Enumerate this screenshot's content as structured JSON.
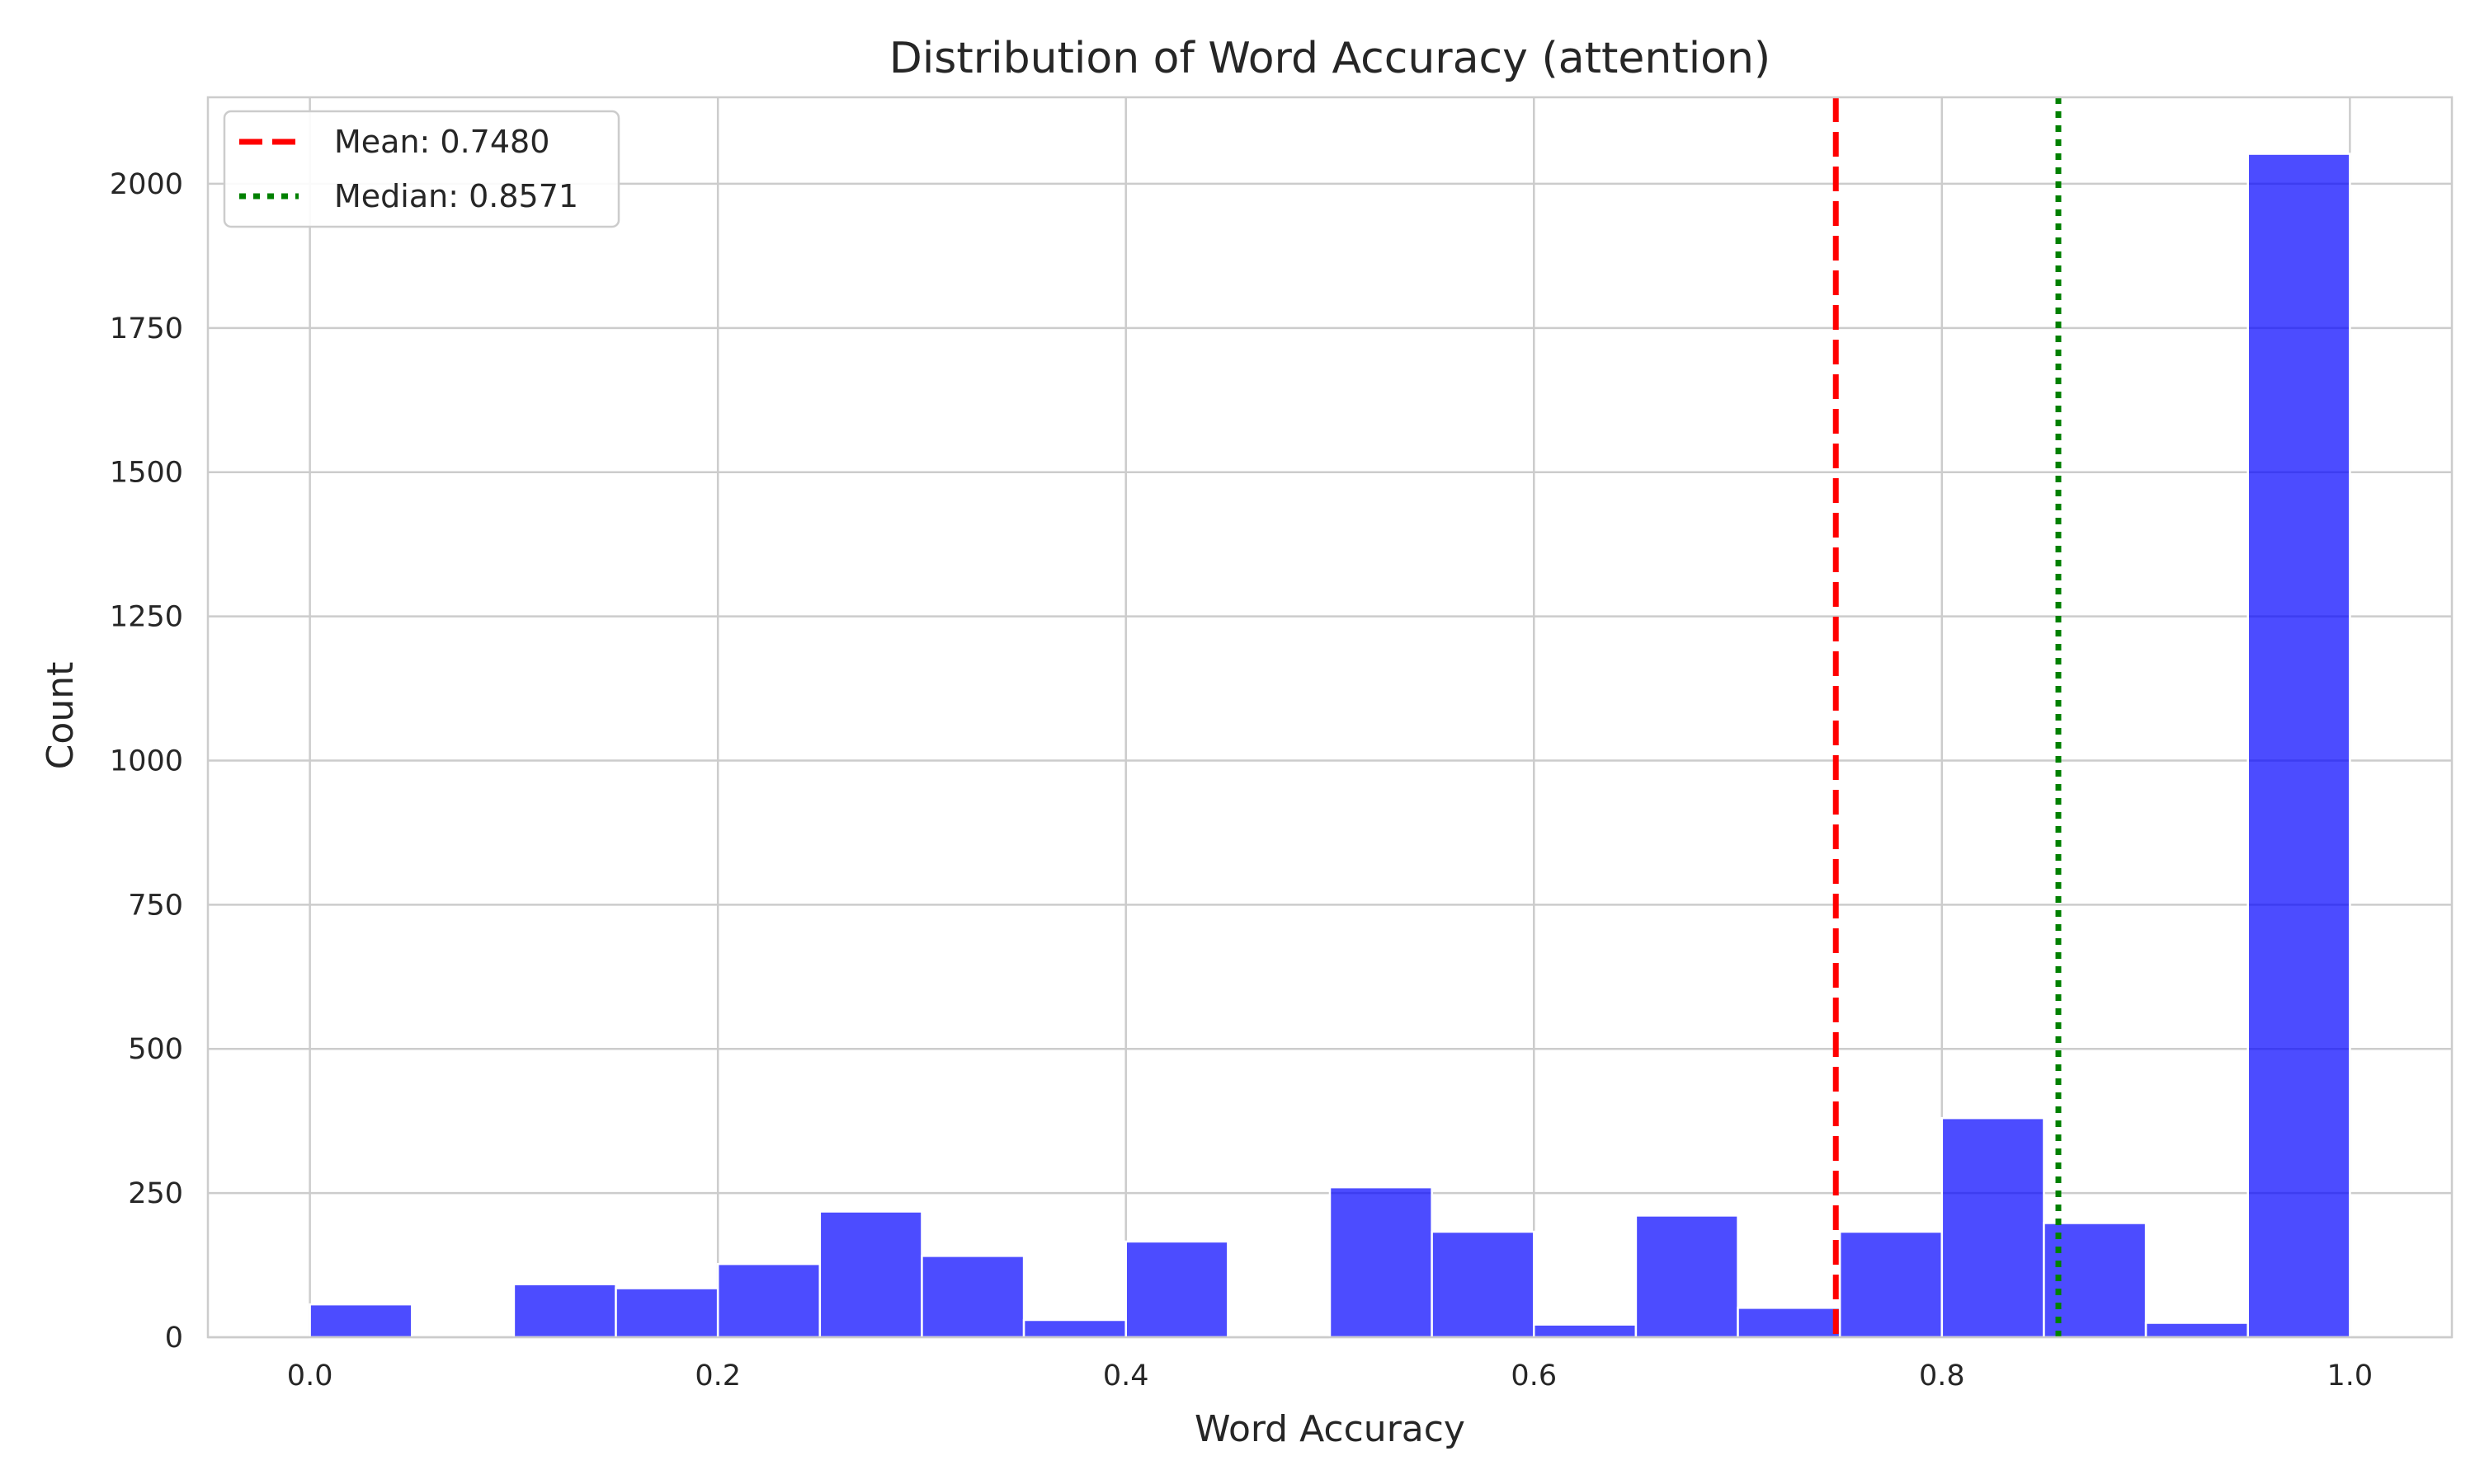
{
  "chart_data": {
    "type": "bar",
    "title": "Distribution of Word Accuracy (attention)",
    "xlabel": "Word Accuracy",
    "ylabel": "Count",
    "xlim": [
      -0.05,
      1.05
    ],
    "ylim": [
      0,
      2150
    ],
    "grid": true,
    "legend_position": "top-left",
    "bar_color": "#0000ff",
    "bin_width": 0.05,
    "bins": [
      {
        "start": 0.0,
        "count": 57
      },
      {
        "start": 0.05,
        "count": 0
      },
      {
        "start": 0.1,
        "count": 92
      },
      {
        "start": 0.15,
        "count": 85
      },
      {
        "start": 0.2,
        "count": 127
      },
      {
        "start": 0.25,
        "count": 218
      },
      {
        "start": 0.3,
        "count": 141
      },
      {
        "start": 0.35,
        "count": 30
      },
      {
        "start": 0.4,
        "count": 166
      },
      {
        "start": 0.45,
        "count": 0
      },
      {
        "start": 0.5,
        "count": 260
      },
      {
        "start": 0.55,
        "count": 183
      },
      {
        "start": 0.6,
        "count": 22
      },
      {
        "start": 0.65,
        "count": 211
      },
      {
        "start": 0.7,
        "count": 51
      },
      {
        "start": 0.75,
        "count": 183
      },
      {
        "start": 0.8,
        "count": 380
      },
      {
        "start": 0.85,
        "count": 198
      },
      {
        "start": 0.9,
        "count": 25
      },
      {
        "start": 0.95,
        "count": 2052
      }
    ],
    "x_ticks": [
      {
        "value": 0.0,
        "label": "0.0"
      },
      {
        "value": 0.2,
        "label": "0.2"
      },
      {
        "value": 0.4,
        "label": "0.4"
      },
      {
        "value": 0.6,
        "label": "0.6"
      },
      {
        "value": 0.8,
        "label": "0.8"
      },
      {
        "value": 1.0,
        "label": "1.0"
      }
    ],
    "y_ticks": [
      {
        "value": 0,
        "label": "0"
      },
      {
        "value": 250,
        "label": "250"
      },
      {
        "value": 500,
        "label": "500"
      },
      {
        "value": 750,
        "label": "750"
      },
      {
        "value": 1000,
        "label": "1000"
      },
      {
        "value": 1250,
        "label": "1250"
      },
      {
        "value": 1500,
        "label": "1500"
      },
      {
        "value": 1750,
        "label": "1750"
      },
      {
        "value": 2000,
        "label": "2000"
      }
    ],
    "reference_lines": [
      {
        "name": "Mean: 0.7480",
        "value": 0.748,
        "color": "#ff0000",
        "style": "dashed"
      },
      {
        "name": "Median: 0.8571",
        "value": 0.8571,
        "color": "#008000",
        "style": "dotted"
      }
    ]
  }
}
